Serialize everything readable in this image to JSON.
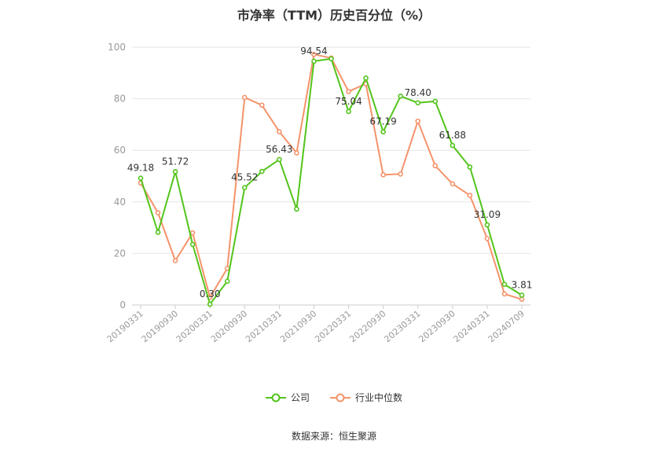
{
  "chart_data": {
    "type": "line",
    "title": "市净率（TTM）历史百分位（%）",
    "categories": [
      "20190331",
      "20190630",
      "20190930",
      "20191231",
      "20200331",
      "20200630",
      "20200930",
      "20201231",
      "20210331",
      "20210630",
      "20210930",
      "20211231",
      "20220331",
      "20220630",
      "20220930",
      "20221231",
      "20230331",
      "20230630",
      "20230930",
      "20231231",
      "20240331",
      "20240630",
      "20240709"
    ],
    "x_tick_labels": [
      "20190331",
      "20190930",
      "20200331",
      "20200930",
      "20210331",
      "20210930",
      "20220331",
      "20220930",
      "20230331",
      "20230930",
      "20240331",
      "20240709"
    ],
    "series": [
      {
        "name": "公司",
        "color": "#52c41a",
        "values": [
          49.18,
          28.2,
          51.72,
          23.5,
          0.3,
          9.2,
          45.52,
          51.8,
          56.43,
          37.2,
          94.54,
          95.5,
          75.04,
          88.0,
          67.19,
          81.0,
          78.4,
          79.0,
          61.88,
          53.5,
          31.09,
          8.0,
          3.81
        ],
        "labels": [
          "49.18",
          "",
          "51.72",
          "",
          "0.30",
          "",
          "45.52",
          "",
          "56.43",
          "",
          "94.54",
          "",
          "75.04",
          "",
          "67.19",
          "",
          "78.40",
          "",
          "61.88",
          "",
          "31.09",
          "",
          "3.81"
        ]
      },
      {
        "name": "行业中位数",
        "color": "#f5936a",
        "values": [
          47.3,
          35.8,
          17.2,
          28.0,
          3.0,
          14.2,
          80.5,
          77.5,
          67.2,
          59.0,
          97.2,
          95.8,
          82.8,
          85.8,
          50.5,
          50.8,
          71.3,
          54.0,
          47.0,
          42.5,
          25.8,
          4.3,
          2.2
        ]
      }
    ],
    "ylim": [
      0,
      100
    ],
    "y_ticks": [
      0,
      20,
      40,
      60,
      80,
      100
    ],
    "grid": true,
    "legend_position": "bottom-center"
  },
  "source_text": "数据来源：恒生聚源"
}
